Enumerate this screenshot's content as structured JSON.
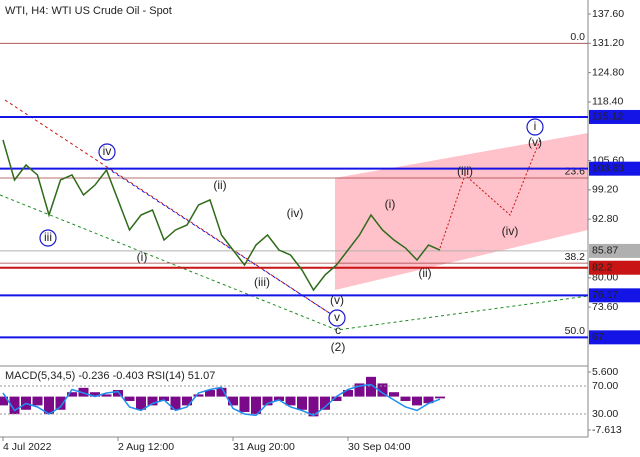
{
  "chart_data": [
    {
      "type": "line",
      "title": "WTI, H4:  WTI US Crude Oil - Spot",
      "categories": [
        "4 Jul 2022",
        null,
        null,
        null,
        null,
        null,
        null,
        null,
        null,
        null,
        "2 Aug 12:00",
        null,
        null,
        null,
        null,
        null,
        null,
        null,
        null,
        null,
        "31 Aug 20:00",
        null,
        null,
        null,
        null,
        null,
        null,
        null,
        null,
        null,
        "30 Sep 04:00",
        null,
        null,
        null,
        null,
        null,
        null,
        null,
        null
      ],
      "values": [
        110.1,
        101.36,
        104.63,
        102.45,
        93.71,
        101.36,
        102.45,
        98.08,
        100.26,
        103.54,
        97.0,
        90.44,
        93.71,
        94.8,
        88.25,
        90.44,
        91.53,
        95.9,
        97.0,
        89.35,
        86.07,
        82.8,
        87.16,
        89.35,
        86.07,
        84.98,
        81.7,
        77.34,
        80.61,
        82.8,
        86.07,
        89.35,
        93.71,
        90.44,
        88.25,
        86.5,
        83.89,
        87.16,
        86.07
      ],
      "color": "#2f6b1a",
      "ylim": [
        60.96,
        140.66
      ],
      "yticks": [
        {
          "value": 137.6,
          "label": "137.60"
        },
        {
          "value": 131.2,
          "label": "131.20"
        },
        {
          "value": 124.8,
          "label": "124.80"
        },
        {
          "value": 118.4,
          "label": "118.40"
        },
        {
          "value": 105.6,
          "label": "105.60"
        },
        {
          "value": 99.2,
          "label": "99.20"
        },
        {
          "value": 92.8,
          "label": "92.80"
        },
        {
          "value": 80.0,
          "label": "80.00"
        },
        {
          "value": 73.6,
          "label": "73.60"
        }
      ],
      "levels": [
        {
          "value": 115.12,
          "color": "#1414e6"
        },
        {
          "value": 103.83,
          "color": "#1414e6"
        },
        {
          "value": 85.87,
          "color": "#b0b0b0"
        },
        {
          "value": 82.2,
          "color": "#c81414"
        },
        {
          "value": 76.17,
          "color": "#1414e6"
        },
        {
          "value": 67.0,
          "color": "#1414e6"
        }
      ],
      "fib_levels": [
        {
          "value": 131.2,
          "label": "0.0"
        },
        {
          "value": 101.8,
          "label": "23.6"
        },
        {
          "value": 83.2,
          "label": "38.2"
        },
        {
          "value": 67.0,
          "label": "50.0"
        }
      ],
      "annotations": [
        {
          "text": "iii",
          "color": "#1a1ad0",
          "circled": true
        },
        {
          "text": "iv",
          "color": "#1a1ad0",
          "circled": true
        },
        {
          "text": "v",
          "color": "#1a1ad0",
          "circled": true
        },
        {
          "text": "i",
          "color": "#1a1ad0",
          "circled": true
        },
        {
          "text": "(i)",
          "color": "#c81414",
          "circled": false
        },
        {
          "text": "(ii)",
          "color": "#c81414",
          "circled": false
        },
        {
          "text": "(iii)",
          "color": "#c81414",
          "circled": false
        },
        {
          "text": "(iv)",
          "color": "#c81414",
          "circled": false
        },
        {
          "text": "(v)",
          "color": "#c81414",
          "circled": false
        },
        {
          "text": "c",
          "color": "#c81414",
          "circled": false
        },
        {
          "text": "(2)",
          "color": "#1e8c1e",
          "circled": false
        },
        {
          "text": "(i)",
          "color": "#c81414",
          "circled": false
        },
        {
          "text": "(ii)",
          "color": "#c81414",
          "circled": false
        },
        {
          "text": "(iii)",
          "color": "#c81414",
          "circled": false
        },
        {
          "text": "(iv)",
          "color": "#c81414",
          "circled": false
        },
        {
          "text": "(v)",
          "color": "#c81414",
          "circled": false
        }
      ]
    },
    {
      "type": "indicator",
      "title": "MACD(5,34,5) -0.236 -0.403 RSI(14) 51.07",
      "values": [
        -2,
        -4,
        -3,
        -2,
        -4,
        -3,
        1,
        2,
        1,
        0.5,
        1.5,
        -1,
        -3,
        -2,
        -1,
        -3,
        -2,
        0.5,
        1.5,
        2,
        -2,
        -3.5,
        -4,
        -2,
        -1,
        -2,
        -3,
        -4.5,
        -3,
        -1,
        1.5,
        3,
        4.5,
        3,
        1,
        -1,
        -2,
        -1.5,
        -0.4
      ],
      "color": "#7a0a8a",
      "ylim": [
        -9.2,
        6.74
      ],
      "yticks": [
        {
          "value": 5.6,
          "label": "5.600"
        },
        {
          "value": -7.613,
          "label": "-7.613"
        }
      ],
      "rsi": {
        "values": [
          60,
          35,
          45,
          40,
          30,
          40,
          65,
          60,
          55,
          60,
          62,
          40,
          35,
          45,
          50,
          35,
          40,
          60,
          65,
          68,
          38,
          30,
          28,
          45,
          50,
          40,
          35,
          28,
          40,
          55,
          65,
          70,
          72,
          60,
          50,
          40,
          35,
          45,
          51.07
        ],
        "color": "#1e8ff0",
        "ylim": [
          -2.9,
          97.1
        ],
        "yticks": [
          {
            "value": 70,
            "label": "70.00"
          },
          {
            "value": 30,
            "label": "30.00"
          }
        ]
      }
    }
  ]
}
